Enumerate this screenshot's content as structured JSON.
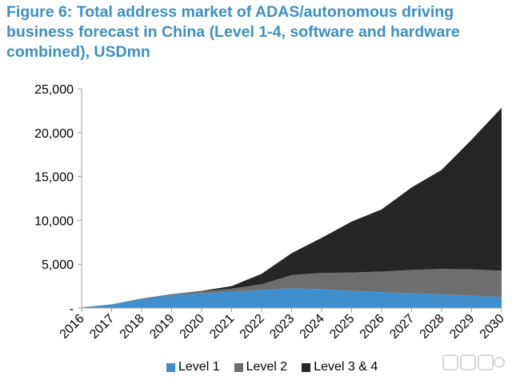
{
  "title_lines": [
    "Figure 6: Total address market of ADAS/autonomous driving",
    "business forecast in China (Level 1-4, software and hardware",
    "combined), USDmn"
  ],
  "colors": {
    "title": "#3d8fc4",
    "level1": "#3f8fcf",
    "level2": "#6e6e6e",
    "level34": "#262626",
    "axis": "#a0a0a0"
  },
  "chart_data": {
    "type": "area",
    "stacked": true,
    "title": "Figure 6: Total address market of ADAS/autonomous driving business forecast in China (Level 1-4, software and hardware combined), USDmn",
    "xlabel": "",
    "ylabel": "",
    "x": [
      "2016",
      "2017",
      "2018",
      "2019",
      "2020",
      "2021",
      "2022",
      "2023",
      "2024",
      "2025",
      "2026",
      "2027",
      "2028",
      "2029",
      "2030"
    ],
    "series": [
      {
        "name": "Level 1",
        "values": [
          80,
          400,
          1000,
          1450,
          1700,
          1850,
          2050,
          2250,
          2150,
          1950,
          1800,
          1700,
          1550,
          1400,
          1250
        ]
      },
      {
        "name": "Level 2",
        "values": [
          0,
          20,
          80,
          130,
          200,
          350,
          650,
          1500,
          1850,
          2100,
          2350,
          2650,
          2900,
          3000,
          3000
        ]
      },
      {
        "name": "Level 3 & 4",
        "values": [
          0,
          0,
          0,
          0,
          50,
          300,
          1200,
          2500,
          4000,
          5800,
          7100,
          9400,
          11300,
          14800,
          18600
        ]
      }
    ],
    "ylim": [
      0,
      25000
    ],
    "yticks": [
      0,
      5000,
      10000,
      15000,
      20000,
      25000
    ],
    "ytick_labels": [
      "-",
      "5,000",
      "10,000",
      "15,000",
      "20,000",
      "25,000"
    ],
    "grid": false,
    "legend_position": "bottom"
  },
  "legend": {
    "items": [
      {
        "label": "Level 1"
      },
      {
        "label": "Level 2"
      },
      {
        "label": "Level 3 & 4"
      }
    ]
  }
}
